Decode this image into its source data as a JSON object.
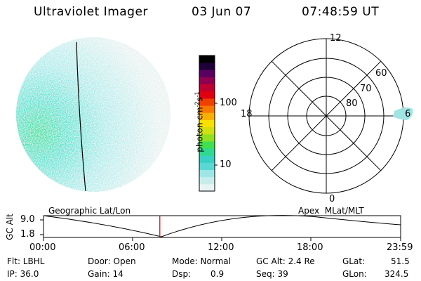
{
  "header": {
    "title": "Ultraviolet Imager",
    "date": "03 Jun 07",
    "time": "07:48:59 UT"
  },
  "colorbar": {
    "unit_label": "photon cm^-2 s^-1",
    "ticks": [
      "100",
      "10"
    ],
    "colors": [
      "#e8f4f4",
      "#c8ecec",
      "#9ee6e6",
      "#5ad8d2",
      "#38d0c4",
      "#30d890",
      "#40e050",
      "#90e020",
      "#d0e010",
      "#f8e000",
      "#f8b000",
      "#f87800",
      "#f04000",
      "#e00010",
      "#c00030",
      "#900050",
      "#5a0060",
      "#20003a",
      "#000000"
    ]
  },
  "polar": {
    "mlt_labels": [
      "12",
      "18",
      "6",
      "0"
    ],
    "lat_labels": [
      "60",
      "70",
      "80"
    ]
  },
  "timeline": {
    "left_label": "Geographic Lat/Lon",
    "right_label": "Apex  MLat/MLT",
    "y_axis_label": "GC Alt",
    "y_ticks": [
      "9.0",
      "1.8"
    ],
    "x_ticks": [
      "00:00",
      "06:00",
      "12:00",
      "18:00",
      "23:59"
    ],
    "marker_fraction": 0.3257
  },
  "info": {
    "row1": [
      {
        "label": "Flt: LBHL"
      },
      {
        "label": "Door: Open"
      },
      {
        "label": "Mode: Normal"
      },
      {
        "label": "GC Alt: 2.4 Re"
      },
      {
        "label": "GLat:",
        "value": "51.5"
      }
    ],
    "row2": [
      {
        "label": "IP: 36.0"
      },
      {
        "label": "Gain: 14"
      },
      {
        "label": "Dsp:",
        "value": "0.9"
      },
      {
        "label": "Seq: 39"
      },
      {
        "label": "GLon:",
        "value": "324.5"
      }
    ]
  }
}
